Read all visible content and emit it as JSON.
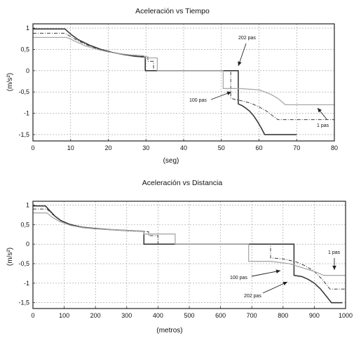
{
  "chart_data": [
    {
      "type": "line",
      "title": "Aceleración vs Tiempo",
      "xlabel": "(seg)",
      "ylabel": "(m/s²)",
      "xlim": [
        0,
        80
      ],
      "ylim": [
        -1.65,
        1.1
      ],
      "xticks": [
        0,
        10,
        20,
        30,
        40,
        50,
        60,
        70,
        80
      ],
      "xtick_labels": [
        "0",
        "10",
        "20",
        "30",
        "40",
        "50",
        "60",
        "70",
        "80"
      ],
      "yticks": [
        1,
        0.5,
        0,
        -0.5,
        -1,
        -1.5
      ],
      "ytick_labels": [
        "1",
        "0,5",
        "0",
        "-0,5",
        "-1",
        "-1,5"
      ],
      "grid": true,
      "series": [
        {
          "style": "solid-dark",
          "x": [
            0,
            8.5,
            10,
            12,
            15,
            18,
            21,
            24,
            27,
            29.8,
            29.8,
            54.5,
            54.5,
            55.5,
            56.5,
            57.5,
            58.5,
            59.5,
            60.5,
            61.5,
            61.5,
            70
          ],
          "y": [
            0.98,
            0.98,
            0.86,
            0.73,
            0.6,
            0.5,
            0.43,
            0.38,
            0.34,
            0.32,
            0,
            0,
            -0.78,
            -0.82,
            -0.88,
            -0.95,
            -1.05,
            -1.18,
            -1.33,
            -1.5,
            -1.5,
            -1.5
          ]
        },
        {
          "style": "dash-dot",
          "x": [
            0,
            8.5,
            10,
            12,
            15,
            18,
            21,
            24,
            27,
            30.5,
            30.5,
            32,
            32,
            52.5,
            52.5,
            54,
            56,
            58,
            60,
            62,
            63.5,
            65,
            65,
            80
          ],
          "y": [
            0.88,
            0.88,
            0.8,
            0.7,
            0.58,
            0.49,
            0.43,
            0.38,
            0.35,
            0.33,
            0.22,
            0.22,
            0,
            0,
            -0.65,
            -0.68,
            -0.72,
            -0.77,
            -0.85,
            -0.95,
            -1.05,
            -1.15,
            -1.15,
            -1.15
          ]
        },
        {
          "style": "solid-light",
          "x": [
            0,
            9,
            11,
            14,
            17,
            20,
            23,
            26,
            29.5,
            29.5,
            33,
            33,
            50.5,
            50.5,
            55,
            60,
            63,
            65,
            67,
            67,
            80
          ],
          "y": [
            0.78,
            0.78,
            0.7,
            0.58,
            0.5,
            0.44,
            0.4,
            0.37,
            0.35,
            0.3,
            0.3,
            0,
            0,
            -0.42,
            -0.42,
            -0.45,
            -0.55,
            -0.65,
            -0.8,
            -0.8,
            -0.8
          ]
        }
      ],
      "annotations": [
        "202 pas",
        "100 pas",
        "1 pas"
      ]
    },
    {
      "type": "line",
      "title": "Aceleración vs Distancia",
      "xlabel": "(metros)",
      "ylabel": "(m/s²)",
      "xlim": [
        0,
        1000
      ],
      "ylim": [
        -1.65,
        1.1
      ],
      "xticks": [
        0,
        100,
        200,
        300,
        400,
        500,
        600,
        700,
        800,
        900,
        1000
      ],
      "xtick_labels": [
        "0",
        "100",
        "200",
        "300",
        "400",
        "500",
        "600",
        "700",
        "800",
        "900",
        "1000"
      ],
      "yticks": [
        1,
        0.5,
        0,
        -0.5,
        -1,
        -1.5
      ],
      "ytick_labels": [
        "1",
        "0,5",
        "0",
        "-0,5",
        "-1",
        "-1,5"
      ],
      "grid": true,
      "series": [
        {
          "style": "solid-dark",
          "x": [
            0,
            40,
            55,
            70,
            90,
            120,
            160,
            200,
            250,
            300,
            355,
            355,
            835,
            835,
            860,
            880,
            900,
            920,
            940,
            955,
            955,
            990
          ],
          "y": [
            0.98,
            0.98,
            0.85,
            0.72,
            0.6,
            0.5,
            0.43,
            0.4,
            0.37,
            0.35,
            0.33,
            0,
            0,
            -0.8,
            -0.83,
            -0.9,
            -1.0,
            -1.15,
            -1.35,
            -1.5,
            -1.5,
            -1.5
          ]
        },
        {
          "style": "dash-dot",
          "x": [
            0,
            45,
            60,
            80,
            110,
            150,
            200,
            250,
            300,
            370,
            370,
            400,
            400,
            760,
            760,
            800,
            840,
            870,
            900,
            925,
            950,
            950,
            1000
          ],
          "y": [
            0.9,
            0.9,
            0.78,
            0.65,
            0.53,
            0.45,
            0.4,
            0.37,
            0.34,
            0.32,
            0.22,
            0.22,
            0,
            0,
            -0.35,
            -0.38,
            -0.45,
            -0.55,
            -0.7,
            -0.9,
            -1.15,
            -1.15,
            -1.15
          ]
        },
        {
          "style": "solid-light",
          "x": [
            0,
            45,
            60,
            85,
            120,
            160,
            200,
            250,
            300,
            355,
            355,
            455,
            455,
            690,
            690,
            760,
            820,
            860,
            900,
            930,
            955,
            955,
            1000
          ],
          "y": [
            0.8,
            0.8,
            0.7,
            0.58,
            0.48,
            0.42,
            0.39,
            0.37,
            0.35,
            0.33,
            0.26,
            0.26,
            0,
            0,
            -0.44,
            -0.44,
            -0.5,
            -0.6,
            -0.7,
            -0.8,
            -0.8,
            -0.8,
            -0.8
          ]
        }
      ],
      "annotations": [
        "1 pas",
        "100 pas",
        "202 pas"
      ]
    }
  ]
}
